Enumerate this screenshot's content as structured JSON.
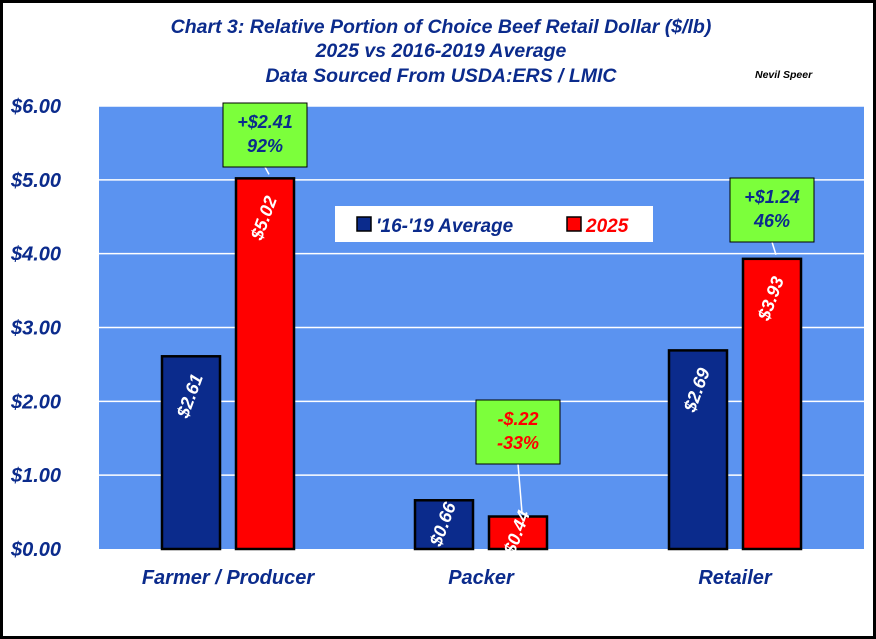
{
  "chart_data": {
    "type": "bar",
    "title_lines": [
      "Chart 3:  Relative Portion of Choice Beef Retail Dollar ($/lb)",
      "2025 vs 2016-2019 Average",
      "Data Sourced From USDA:ERS / LMIC"
    ],
    "credit": "Nevil Speer",
    "categories": [
      "Farmer / Producer",
      "Packer",
      "Retailer"
    ],
    "series": [
      {
        "name": "'16-'19 Average",
        "values": [
          2.61,
          0.66,
          2.69
        ],
        "labels": [
          "$2.61",
          "$0.66",
          "$2.69"
        ],
        "color": "#0b2b8c"
      },
      {
        "name": "2025",
        "values": [
          5.02,
          0.44,
          3.93
        ],
        "labels": [
          "$5.02",
          "$0.44",
          "$3.93"
        ],
        "color": "#ff0000"
      }
    ],
    "ylim": [
      0,
      6
    ],
    "y_ticks": [
      0,
      1,
      2,
      3,
      4,
      5,
      6
    ],
    "y_tick_labels": [
      "$0.00",
      "$1.00",
      "$2.00",
      "$3.00",
      "$4.00",
      "$5.00",
      "$6.00"
    ],
    "grid": true,
    "legend_position": "top-center",
    "annotations": [
      {
        "category": "Farmer / Producer",
        "lines": [
          "+$2.41",
          "92%"
        ],
        "color": "#0b2b8c"
      },
      {
        "category": "Packer",
        "lines": [
          "-$.22",
          "-33%"
        ],
        "color": "#ff0000"
      },
      {
        "category": "Retailer",
        "lines": [
          "+$1.24",
          "46%"
        ],
        "color": "#0b2b8c"
      }
    ],
    "colors": {
      "plot_background": "#5b93f0",
      "gridline": "#ffffff",
      "annotation_fill": "#7cff3b",
      "legend_fill": "#ffffff"
    }
  }
}
